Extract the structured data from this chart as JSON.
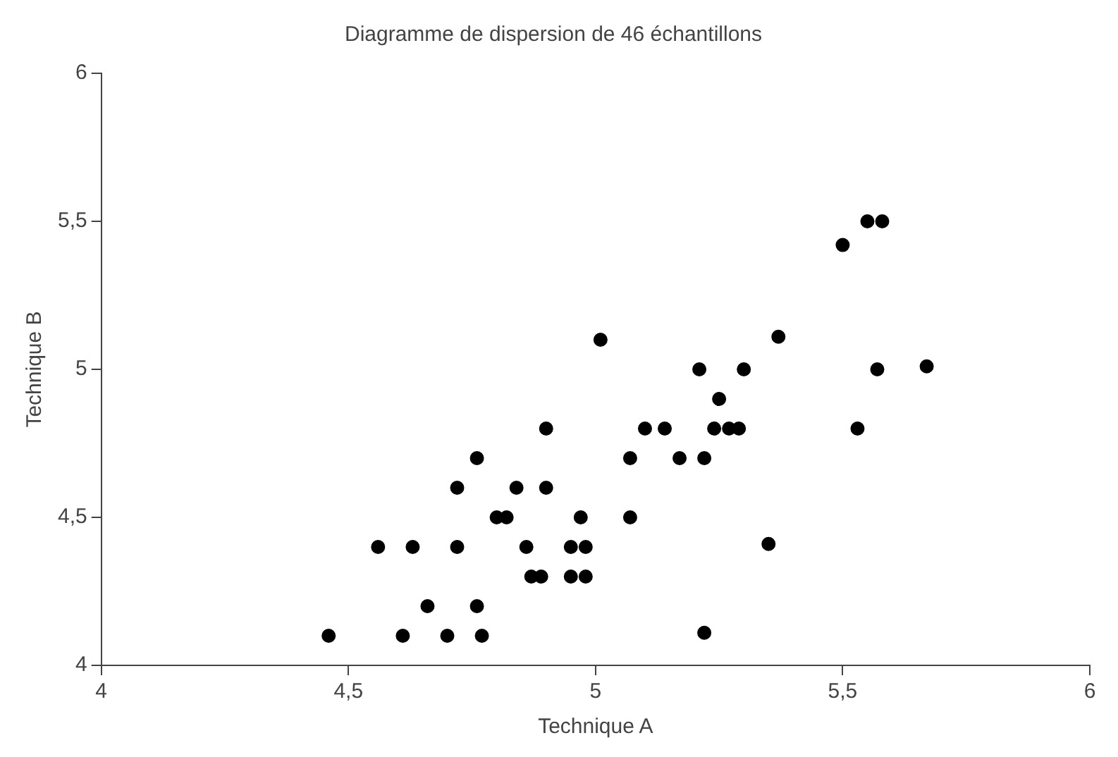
{
  "chart_data": {
    "type": "scatter",
    "title": "Diagramme de dispersion de 46 échantillons",
    "xlabel": "Technique A",
    "ylabel": "Technique B",
    "x": [
      5.01,
      4.9,
      4.76,
      4.72,
      4.84,
      4.9,
      4.8,
      4.82,
      4.97,
      4.56,
      4.63,
      4.72,
      4.86,
      4.98,
      4.95,
      4.87,
      4.89,
      4.98,
      4.95,
      4.66,
      4.76,
      4.46,
      4.61,
      4.7,
      4.77,
      5.58,
      5.55,
      5.5,
      5.37,
      5.21,
      5.3,
      5.57,
      5.67,
      5.25,
      5.1,
      5.14,
      5.24,
      5.27,
      5.29,
      5.53,
      5.07,
      5.17,
      5.22,
      5.07,
      5.35,
      5.22
    ],
    "series": [
      {
        "color": "#000000",
        "values": [
          5.1,
          4.8,
          4.7,
          4.6,
          4.6,
          4.6,
          4.5,
          4.5,
          4.5,
          4.4,
          4.4,
          4.4,
          4.4,
          4.4,
          4.4,
          4.3,
          4.3,
          4.3,
          4.3,
          4.2,
          4.2,
          4.1,
          4.1,
          4.1,
          4.1,
          5.5,
          5.5,
          5.42,
          5.11,
          5.0,
          5.0,
          5.0,
          5.01,
          4.9,
          4.8,
          4.8,
          4.8,
          4.8,
          4.8,
          4.8,
          4.7,
          4.7,
          4.7,
          4.5,
          4.41,
          4.11
        ]
      }
    ],
    "xlim": [
      4,
      6
    ],
    "ylim": [
      4,
      6
    ],
    "xticks": [
      4,
      {
        "value": 4.5,
        "label": "4,5"
      },
      5,
      {
        "value": 5.5,
        "label": "5,5"
      },
      6
    ],
    "yticks": [
      4,
      {
        "value": 4.5,
        "label": "4,5"
      },
      5,
      {
        "value": 5.5,
        "label": "5,5"
      },
      6
    ],
    "grid": false,
    "legend": false,
    "marker": "circle"
  }
}
